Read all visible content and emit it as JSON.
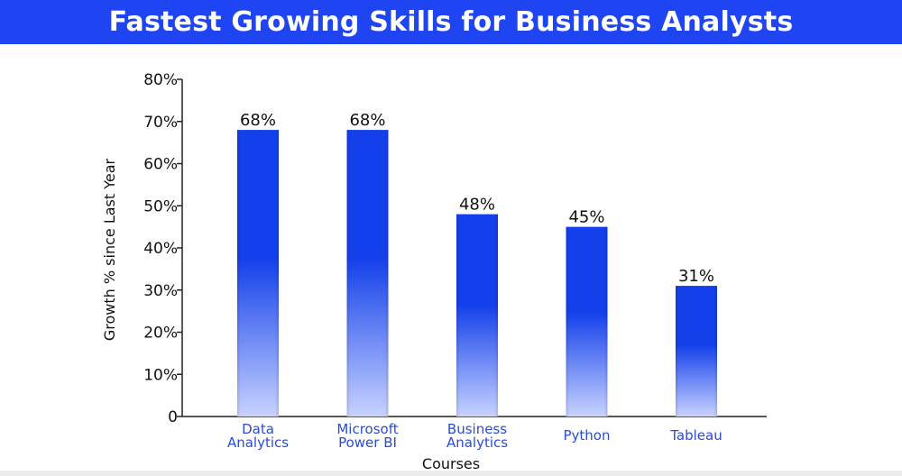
{
  "header": {
    "title": "Fastest Growing Skills for Business Analysts"
  },
  "colors": {
    "banner": "#1f45f2",
    "bar_top": "#1340ea",
    "bar_bottom": "#c8d2ff",
    "category_text": "#2a4bd6"
  },
  "chart_data": {
    "type": "bar",
    "title": "Fastest Growing Skills for Business Analysts",
    "xlabel": "Courses",
    "ylabel": "Growth % since Last Year",
    "ylim": [
      0,
      80
    ],
    "yticks": [
      0,
      10,
      20,
      30,
      40,
      50,
      60,
      70,
      80
    ],
    "ytick_labels": [
      "0",
      "10%",
      "20%",
      "30%",
      "40%",
      "50%",
      "60%",
      "70%",
      "80%"
    ],
    "categories": [
      [
        "Data",
        "Analytics"
      ],
      [
        "Microsoft",
        "Power BI"
      ],
      [
        "Business",
        "Analytics"
      ],
      [
        "Python"
      ],
      [
        "Tableau"
      ]
    ],
    "values": [
      68,
      68,
      48,
      45,
      31
    ],
    "value_labels": [
      "68%",
      "68%",
      "48%",
      "45%",
      "31%"
    ],
    "grid": false,
    "legend": "none"
  }
}
